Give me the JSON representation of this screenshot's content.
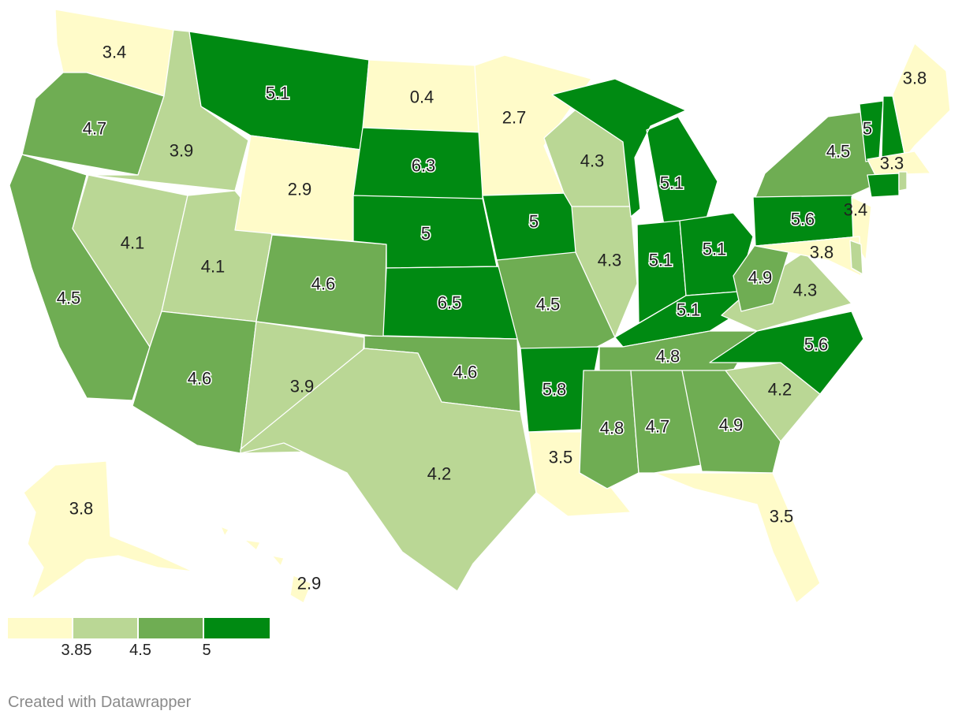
{
  "colors": {
    "bin1": "#fffbc9",
    "bin2": "#bad795",
    "bin3": "#6fad53",
    "bin4": "#008a12"
  },
  "legend": {
    "bins": [
      "bin1",
      "bin2",
      "bin3",
      "bin4"
    ],
    "thresholds": [
      "3.85",
      "4.5",
      "5"
    ]
  },
  "footer": {
    "credit": "Created with Datawrapper"
  },
  "states": [
    {
      "id": "WA",
      "value": "3.4",
      "bin": "bin1"
    },
    {
      "id": "OR",
      "value": "4.7",
      "bin": "bin3"
    },
    {
      "id": "CA",
      "value": "4.5",
      "bin": "bin3"
    },
    {
      "id": "ID",
      "value": "3.9",
      "bin": "bin2"
    },
    {
      "id": "NV",
      "value": "4.1",
      "bin": "bin2"
    },
    {
      "id": "UT",
      "value": "4.1",
      "bin": "bin2"
    },
    {
      "id": "AZ",
      "value": "4.6",
      "bin": "bin3"
    },
    {
      "id": "MT",
      "value": "5.1",
      "bin": "bin4"
    },
    {
      "id": "WY",
      "value": "2.9",
      "bin": "bin1"
    },
    {
      "id": "CO",
      "value": "4.6",
      "bin": "bin3"
    },
    {
      "id": "NM",
      "value": "3.9",
      "bin": "bin2"
    },
    {
      "id": "ND",
      "value": "0.4",
      "bin": "bin1"
    },
    {
      "id": "SD",
      "value": "6.3",
      "bin": "bin4"
    },
    {
      "id": "NE",
      "value": "5",
      "bin": "bin4"
    },
    {
      "id": "KS",
      "value": "6.5",
      "bin": "bin4"
    },
    {
      "id": "OK",
      "value": "4.6",
      "bin": "bin3"
    },
    {
      "id": "TX",
      "value": "4.2",
      "bin": "bin2"
    },
    {
      "id": "MN",
      "value": "2.7",
      "bin": "bin1"
    },
    {
      "id": "IA",
      "value": "5",
      "bin": "bin4"
    },
    {
      "id": "MO",
      "value": "4.5",
      "bin": "bin3"
    },
    {
      "id": "AR",
      "value": "5.8",
      "bin": "bin4"
    },
    {
      "id": "LA",
      "value": "3.5",
      "bin": "bin1"
    },
    {
      "id": "WI",
      "value": "4.3",
      "bin": "bin2"
    },
    {
      "id": "IL",
      "value": "4.3",
      "bin": "bin2"
    },
    {
      "id": "MI",
      "value": "5.1",
      "bin": "bin4"
    },
    {
      "id": "IN",
      "value": "5.1",
      "bin": "bin4"
    },
    {
      "id": "OH",
      "value": "5.1",
      "bin": "bin4"
    },
    {
      "id": "KY",
      "value": "5.1",
      "bin": "bin4"
    },
    {
      "id": "TN",
      "value": "4.8",
      "bin": "bin3"
    },
    {
      "id": "MS",
      "value": "4.8",
      "bin": "bin3"
    },
    {
      "id": "AL",
      "value": "4.7",
      "bin": "bin3"
    },
    {
      "id": "GA",
      "value": "4.9",
      "bin": "bin3"
    },
    {
      "id": "FL",
      "value": "3.5",
      "bin": "bin1"
    },
    {
      "id": "SC",
      "value": "4.2",
      "bin": "bin2"
    },
    {
      "id": "NC",
      "value": "5.6",
      "bin": "bin4"
    },
    {
      "id": "VA",
      "value": "4.3",
      "bin": "bin2"
    },
    {
      "id": "WV",
      "value": "4.9",
      "bin": "bin3"
    },
    {
      "id": "PA",
      "value": "5.6",
      "bin": "bin4"
    },
    {
      "id": "NY",
      "value": "4.5",
      "bin": "bin3"
    },
    {
      "id": "NJ",
      "value": "3.4",
      "bin": "bin1"
    },
    {
      "id": "MD",
      "value": "3.8",
      "bin": "bin1"
    },
    {
      "id": "DE",
      "value": "",
      "bin": "bin2"
    },
    {
      "id": "VT",
      "value": "5",
      "bin": "bin4"
    },
    {
      "id": "NH",
      "value": "",
      "bin": "bin4"
    },
    {
      "id": "ME",
      "value": "3.8",
      "bin": "bin1"
    },
    {
      "id": "MA",
      "value": "3.3",
      "bin": "bin1"
    },
    {
      "id": "CT",
      "value": "",
      "bin": "bin4"
    },
    {
      "id": "RI",
      "value": "",
      "bin": "bin2"
    },
    {
      "id": "AK",
      "value": "3.8",
      "bin": "bin1"
    },
    {
      "id": "HI",
      "value": "2.9",
      "bin": "bin1"
    }
  ]
}
